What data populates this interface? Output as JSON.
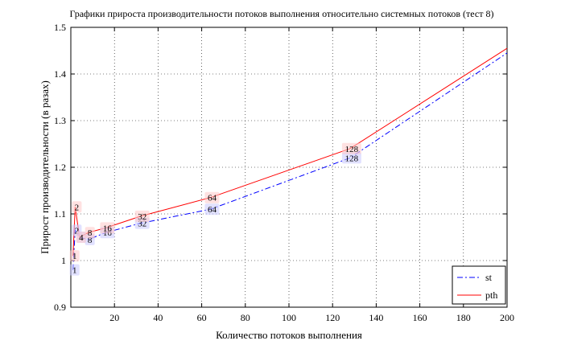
{
  "chart_data": {
    "type": "line",
    "title": "Графики прироста производительности потоков выполнения относительно системных потоков (тест 8)",
    "xlabel": "Количество потоков выполнения",
    "ylabel": "Прирост производительности (в разах)",
    "xlim": [
      0,
      200
    ],
    "ylim": [
      0.9,
      1.5
    ],
    "xticks": [
      20,
      40,
      60,
      80,
      100,
      120,
      140,
      160,
      180,
      200
    ],
    "yticks": [
      0.9,
      1,
      1.1,
      1.2,
      1.3,
      1.4,
      1.5
    ],
    "x_tick_labels": [
      "20",
      "40",
      "60",
      "80",
      "100",
      "120",
      "140",
      "160",
      "180",
      "200"
    ],
    "y_tick_labels": [
      "0.9",
      "1",
      "1.1",
      "1.2",
      "1.3",
      "1.4",
      "1.5"
    ],
    "grid": true,
    "legend_position": "bottom-right",
    "series": [
      {
        "name": "st",
        "color": "#0000ff",
        "style": "dash-dot",
        "x": [
          1,
          2,
          4,
          8,
          16,
          32,
          64,
          128,
          200
        ],
        "y": [
          0.98,
          1.065,
          1.05,
          1.045,
          1.06,
          1.08,
          1.11,
          1.22,
          1.445
        ],
        "labels": [
          "1",
          "2",
          "4",
          "8",
          "16",
          "32",
          "64",
          "128",
          ""
        ]
      },
      {
        "name": "pth",
        "color": "#ff0000",
        "style": "solid",
        "x": [
          1,
          2,
          4,
          8,
          16,
          32,
          64,
          128,
          200
        ],
        "y": [
          1.01,
          1.115,
          1.05,
          1.06,
          1.07,
          1.095,
          1.135,
          1.24,
          1.455
        ],
        "labels": [
          "1",
          "2",
          "4",
          "8",
          "16",
          "32",
          "64",
          "128",
          ""
        ]
      }
    ]
  }
}
